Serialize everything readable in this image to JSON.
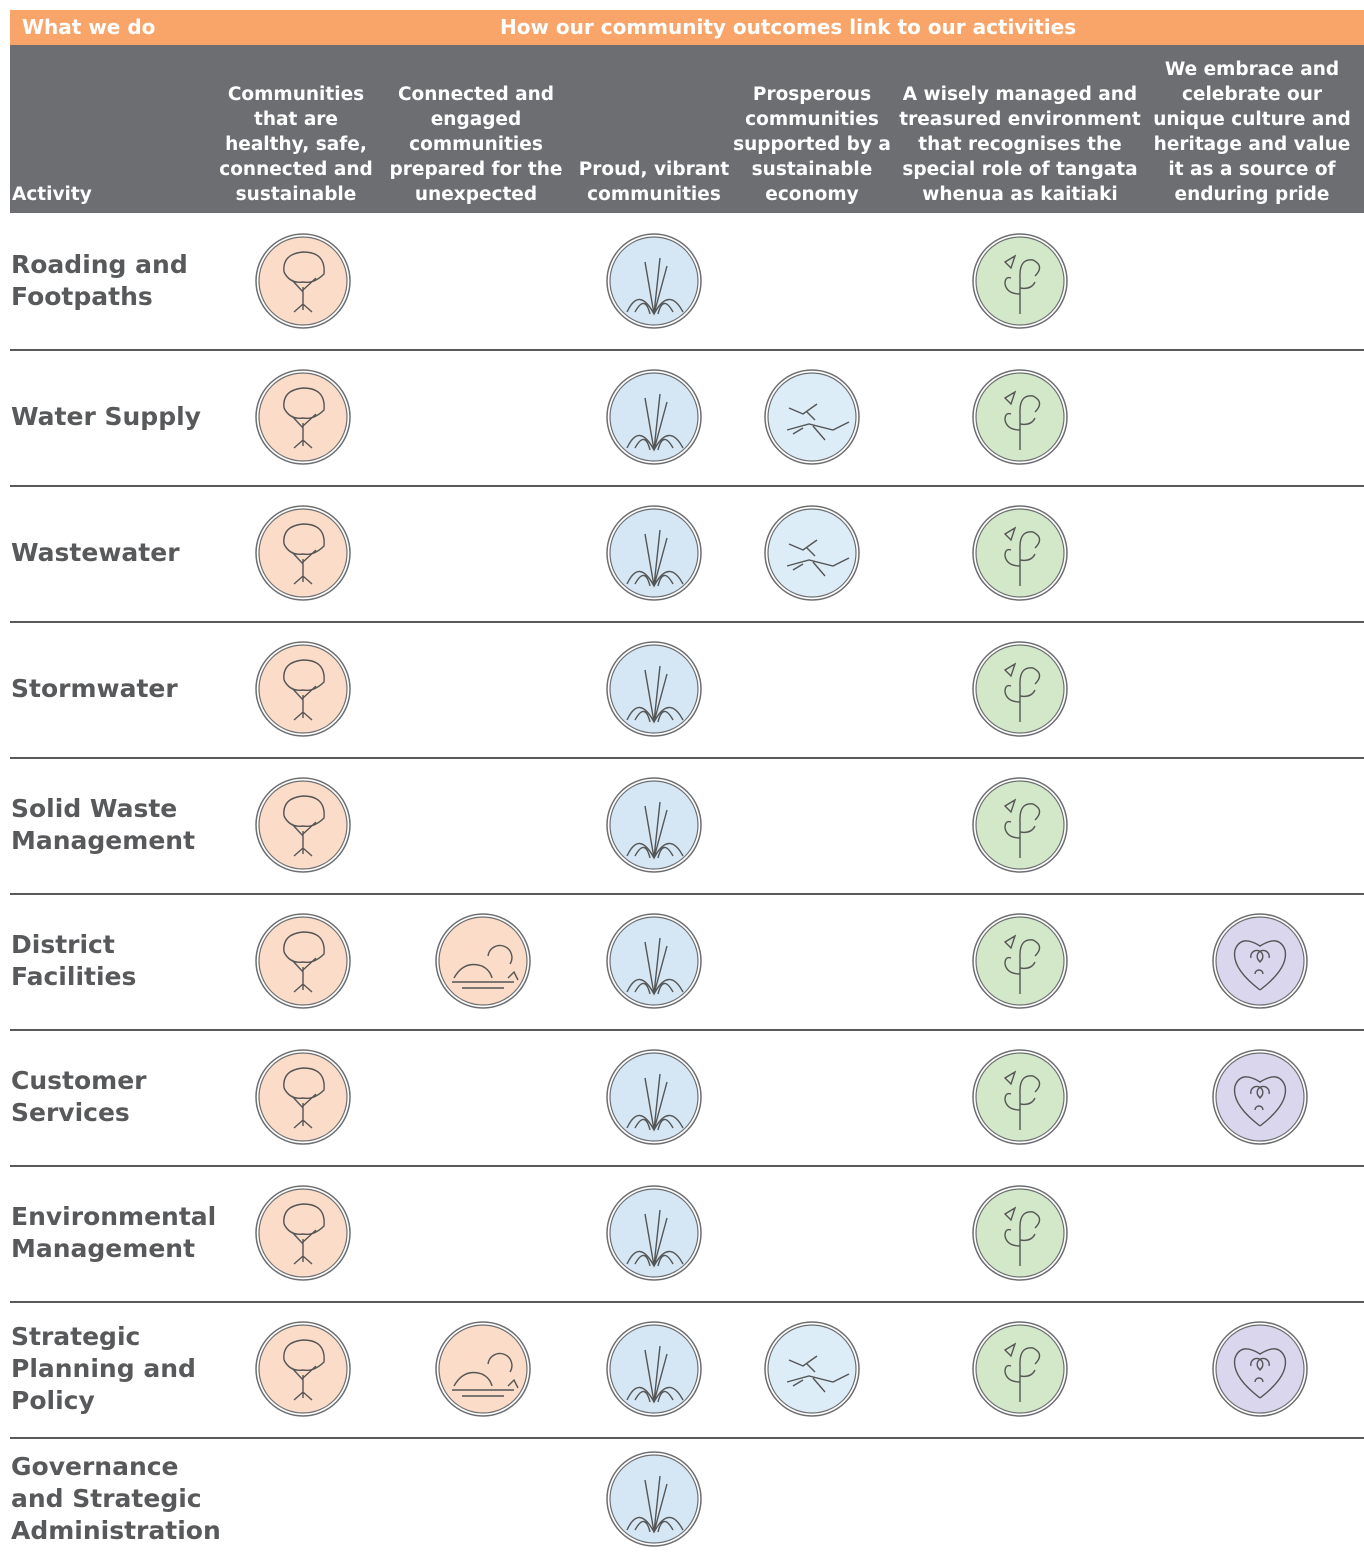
{
  "header": {
    "left": "What we do",
    "right": "How our community outcomes link to our activities"
  },
  "table": {
    "activity_heading": "Activity",
    "outcomes": [
      {
        "title": "Communities that are healthy, safe, connected and sustainable",
        "color": "#fbdcc8"
      },
      {
        "title": "Connected and engaged communities prepared for the unexpected",
        "color": "#fbdcc8"
      },
      {
        "title": "Proud, vibrant communities",
        "color": "#d5e7f5"
      },
      {
        "title": "Prosperous communities supported by a sustainable economy",
        "color": "#dcedf8"
      },
      {
        "title": "A wisely managed and treasured environment that recognises the special role of tangata whenua as kaitiaki",
        "color": "#d3e8c8"
      },
      {
        "title": "We embrace and celebrate our unique culture and heritage and value it as a source of enduring pride",
        "color": "#d9d6ee"
      }
    ],
    "rows": [
      {
        "activity": "Roading and Footpaths",
        "links": [
          true,
          false,
          true,
          false,
          true,
          false
        ]
      },
      {
        "activity": "Water Supply",
        "links": [
          true,
          false,
          true,
          true,
          true,
          false
        ]
      },
      {
        "activity": "Wastewater",
        "links": [
          true,
          false,
          true,
          true,
          true,
          false
        ]
      },
      {
        "activity": "Stormwater",
        "links": [
          true,
          false,
          true,
          false,
          true,
          false
        ]
      },
      {
        "activity": "Solid Waste Management",
        "links": [
          true,
          false,
          true,
          false,
          true,
          false
        ]
      },
      {
        "activity": "District Facilities",
        "links": [
          true,
          true,
          true,
          false,
          true,
          true
        ]
      },
      {
        "activity": "Customer Services",
        "links": [
          true,
          false,
          true,
          false,
          true,
          true
        ]
      },
      {
        "activity": "Environmental Management",
        "links": [
          true,
          false,
          true,
          false,
          true,
          false
        ]
      },
      {
        "activity": "Strategic Planning and Policy",
        "links": [
          true,
          true,
          true,
          true,
          true,
          true
        ]
      },
      {
        "activity": "Governance and Strategic Administration",
        "links": [
          false,
          false,
          true,
          false,
          false,
          false
        ]
      }
    ]
  }
}
